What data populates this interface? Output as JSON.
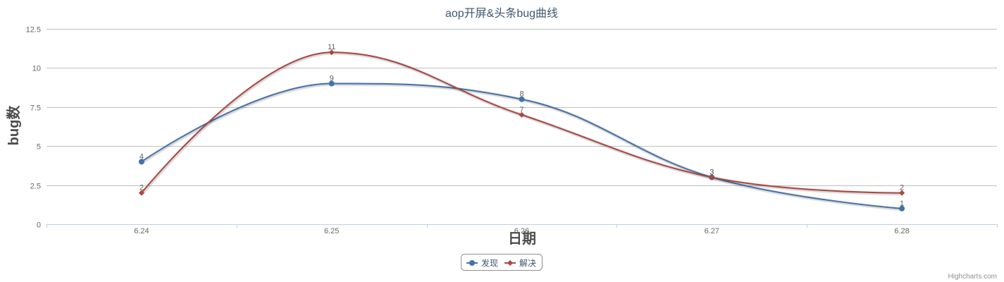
{
  "chart_data": {
    "type": "line",
    "smooth": true,
    "title": "aop开屏&头条bug曲线",
    "xlabel": "日期",
    "ylabel": "bug数",
    "categories": [
      "6.24",
      "6.25",
      "6.26",
      "6.27",
      "6.28"
    ],
    "ylim": [
      0,
      12.5
    ],
    "yticks": [
      "0",
      "2.5",
      "5",
      "7.5",
      "10",
      "12.5"
    ],
    "yticks_values": [
      0,
      2.5,
      5,
      7.5,
      10,
      12.5
    ],
    "grid": true,
    "legend": "bottom-center",
    "series": [
      {
        "name": "发现",
        "values": [
          4,
          9,
          8,
          3,
          1
        ],
        "color": "#4572A7",
        "marker": "circle"
      },
      {
        "name": "解决",
        "values": [
          2,
          11,
          7,
          3,
          2
        ],
        "color": "#AA4643",
        "marker": "diamond"
      }
    ],
    "credits": "Highcharts.com"
  }
}
